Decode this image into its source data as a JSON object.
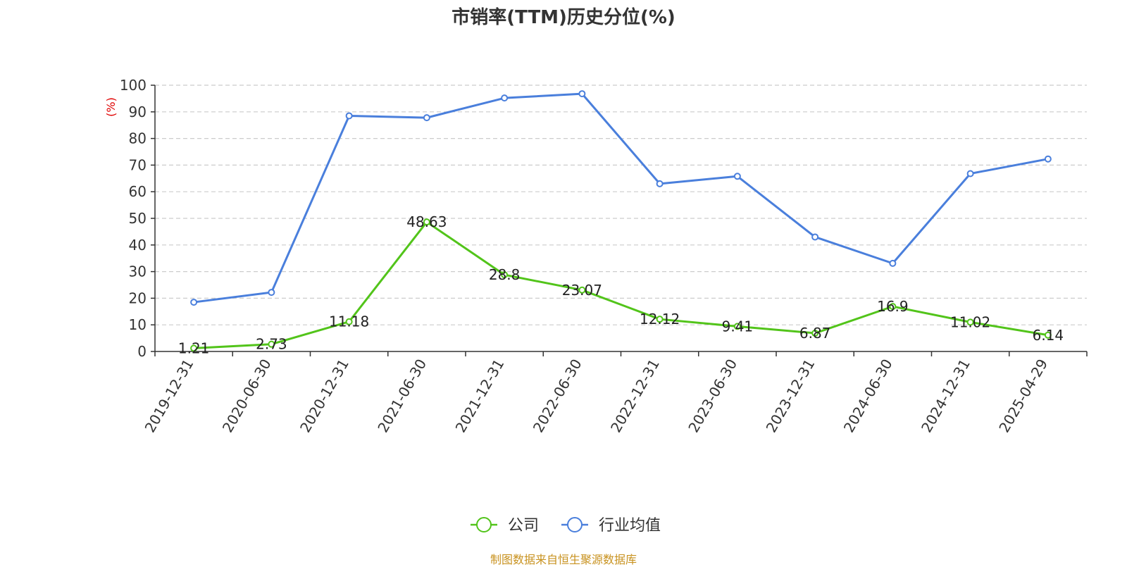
{
  "chart_data": {
    "type": "line",
    "title": "市销率(TTM)历史分位(%)",
    "ylabel": "(%)",
    "ylim": [
      0,
      100
    ],
    "yticks": [
      0,
      10,
      20,
      30,
      40,
      50,
      60,
      70,
      80,
      90,
      100
    ],
    "grid": true,
    "legend_position": "bottom",
    "categories": [
      "2019-12-31",
      "2020-06-30",
      "2020-12-31",
      "2021-06-30",
      "2021-12-31",
      "2022-06-30",
      "2022-12-31",
      "2023-06-30",
      "2023-12-31",
      "2024-06-30",
      "2024-12-31",
      "2025-04-29"
    ],
    "series": [
      {
        "name": "公司",
        "color": "#52c41a",
        "values": [
          1.21,
          2.73,
          11.18,
          48.63,
          28.8,
          23.07,
          12.12,
          9.41,
          6.87,
          16.9,
          11.02,
          6.14
        ],
        "labels": [
          "1.21",
          "2.73",
          "11.18",
          "48.63",
          "28.8",
          "23.07",
          "12.12",
          "9.41",
          "6.87",
          "16.9",
          "11.02",
          "6.14"
        ]
      },
      {
        "name": "行业均值",
        "color": "#4a7fdc",
        "values": [
          18.5,
          22.2,
          88.5,
          87.8,
          95.2,
          96.8,
          63.0,
          65.8,
          43.0,
          33.1,
          66.8,
          72.3
        ]
      }
    ],
    "source": "制图数据来自恒生聚源数据库"
  }
}
